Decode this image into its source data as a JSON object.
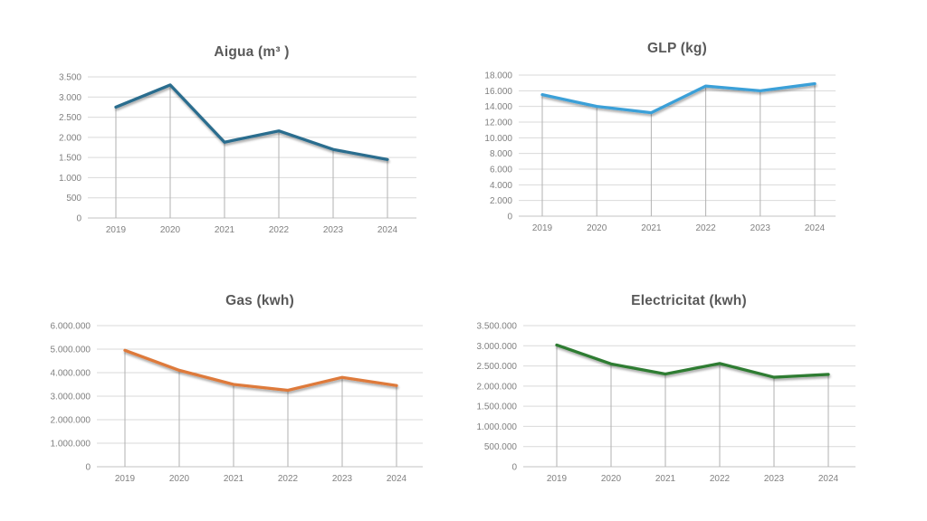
{
  "page": {
    "background_color": "#ffffff"
  },
  "style": {
    "grid_color": "#d9d9d9",
    "axis_color": "#c3c3c3",
    "drop_line_color": "#b2b2b2",
    "tick_label_color": "#808080",
    "title_color": "#595959"
  },
  "chart_data": [
    {
      "id": "aigua",
      "type": "line",
      "title": "Aigua (m³ )",
      "xlabel": "",
      "ylabel": "",
      "categories": [
        "2019",
        "2020",
        "2021",
        "2022",
        "2023",
        "2024"
      ],
      "values": [
        2750,
        3300,
        1880,
        2160,
        1700,
        1450
      ],
      "ylim": [
        0,
        3500
      ],
      "y_tick_labels": [
        "0",
        "500",
        "1.000",
        "1.500",
        "2.000",
        "2.500",
        "3.000",
        "3.500"
      ],
      "line_color": "#2C6D8E",
      "grid": "horizontal",
      "drop_lines": true,
      "legend": "none"
    },
    {
      "id": "glp",
      "type": "line",
      "title": "GLP (kg)",
      "xlabel": "",
      "ylabel": "",
      "categories": [
        "2019",
        "2020",
        "2021",
        "2022",
        "2023",
        "2024"
      ],
      "values": [
        15500,
        14000,
        13200,
        16600,
        16000,
        16900
      ],
      "ylim": [
        0,
        18000
      ],
      "y_tick_labels": [
        "0",
        "2.000",
        "4.000",
        "6.000",
        "8.000",
        "10.000",
        "12.000",
        "14.000",
        "16.000",
        "18.000"
      ],
      "line_color": "#3BA0D8",
      "grid": "horizontal",
      "drop_lines": true,
      "legend": "none"
    },
    {
      "id": "gas",
      "type": "line",
      "title": "Gas (kwh)",
      "xlabel": "",
      "ylabel": "",
      "categories": [
        "2019",
        "2020",
        "2021",
        "2022",
        "2023",
        "2024"
      ],
      "values": [
        4950000,
        4100000,
        3500000,
        3250000,
        3800000,
        3450000
      ],
      "ylim": [
        0,
        6000000
      ],
      "y_tick_labels": [
        "0",
        "1.000.000",
        "2.000.000",
        "3.000.000",
        "4.000.000",
        "5.000.000",
        "6.000.000"
      ],
      "line_color": "#DE7A3B",
      "grid": "horizontal",
      "drop_lines": true,
      "legend": "none"
    },
    {
      "id": "electricitat",
      "type": "line",
      "title": "Electricitat (kwh)",
      "xlabel": "",
      "ylabel": "",
      "categories": [
        "2019",
        "2020",
        "2021",
        "2022",
        "2023",
        "2024"
      ],
      "values": [
        3020000,
        2550000,
        2300000,
        2560000,
        2220000,
        2290000
      ],
      "ylim": [
        0,
        3500000
      ],
      "y_tick_labels": [
        "0",
        "500.000",
        "1.000.000",
        "1.500.000",
        "2.000.000",
        "2.500.000",
        "3.000.000",
        "3.500.000"
      ],
      "line_color": "#2E7B31",
      "grid": "horizontal",
      "drop_lines": true,
      "legend": "none"
    }
  ]
}
